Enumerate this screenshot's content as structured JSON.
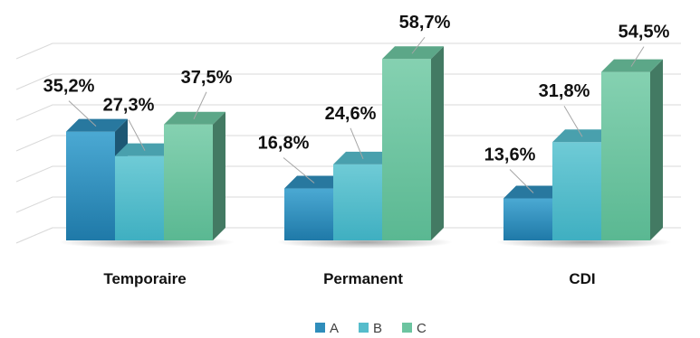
{
  "chart_data": {
    "type": "bar",
    "style": "3d-clustered-column",
    "categories": [
      "Temporaire",
      "Permanent",
      "CDI"
    ],
    "series": [
      {
        "name": "A",
        "values": [
          35.2,
          16.8,
          13.6
        ],
        "color": "#2F8DBB"
      },
      {
        "name": "B",
        "values": [
          27.3,
          24.6,
          31.8
        ],
        "color": "#56BCCB"
      },
      {
        "name": "C",
        "values": [
          37.5,
          58.7,
          54.5
        ],
        "color": "#6CC4A0"
      }
    ],
    "data_labels": [
      [
        "35,2%",
        "16,8%",
        "13,6%"
      ],
      [
        "27,3%",
        "24,6%",
        "31,8%"
      ],
      [
        "37,5%",
        "58,7%",
        "54,5%"
      ]
    ],
    "ylim": [
      0,
      70
    ],
    "grid": true,
    "legend_position": "bottom"
  }
}
